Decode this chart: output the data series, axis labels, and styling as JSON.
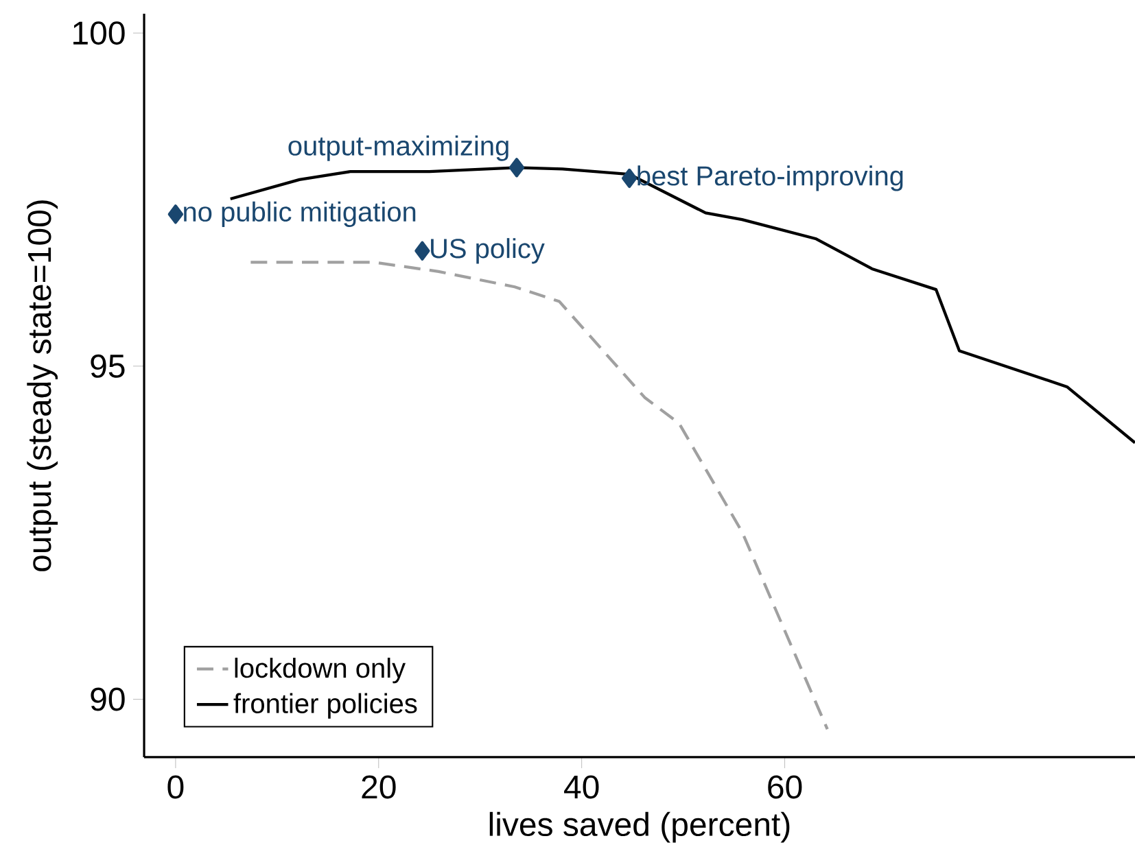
{
  "chart_data": {
    "type": "line",
    "xlabel": "lives saved (percent)",
    "ylabel": "output (steady state=100)",
    "xlim": [
      -3.1,
      94.5
    ],
    "ylim": [
      89.13,
      100.29
    ],
    "xticks": [
      0,
      20,
      40,
      60
    ],
    "yticks": [
      90,
      95,
      100
    ],
    "grid": false,
    "legend": "bottom left",
    "series": [
      {
        "name": "lockdown only",
        "color": "#a0a0a0",
        "line_style": "dashed",
        "x": [
          7.4,
          19.5,
          25.9,
          33.4,
          37.8,
          46.2,
          49.6,
          55.8,
          64.2
        ],
        "values": [
          96.56,
          96.56,
          96.42,
          96.19,
          95.97,
          94.53,
          94.14,
          92.51,
          89.55
        ]
      },
      {
        "name": "frontier policies",
        "color": "#000000",
        "line_style": "solid",
        "x": [
          5.4,
          12.2,
          17.2,
          25.0,
          33.6,
          38.1,
          44.7,
          52.2,
          55.8,
          63.1,
          68.6,
          74.9,
          77.2,
          87.8,
          94.5
        ],
        "values": [
          97.51,
          97.8,
          97.92,
          97.92,
          97.98,
          97.96,
          97.88,
          97.3,
          97.2,
          96.91,
          96.46,
          96.15,
          95.23,
          94.69,
          93.85
        ]
      },
      {
        "type": "scatter",
        "color": "#1a476f",
        "marker": "diamond",
        "x": [
          0,
          24.3,
          33.6,
          44.7
        ],
        "values": [
          97.28,
          96.73,
          97.98,
          97.82
        ]
      }
    ],
    "annotations": [
      {
        "text": "no public mitigation",
        "x": 0,
        "y": 97.28
      },
      {
        "text": "US policy",
        "x": 24.3,
        "y": 96.73
      },
      {
        "text": "output-maximizing",
        "x": 33.6,
        "y": 97.98
      },
      {
        "text": "best Pareto-improving",
        "x": 44.7,
        "y": 97.82
      }
    ]
  }
}
